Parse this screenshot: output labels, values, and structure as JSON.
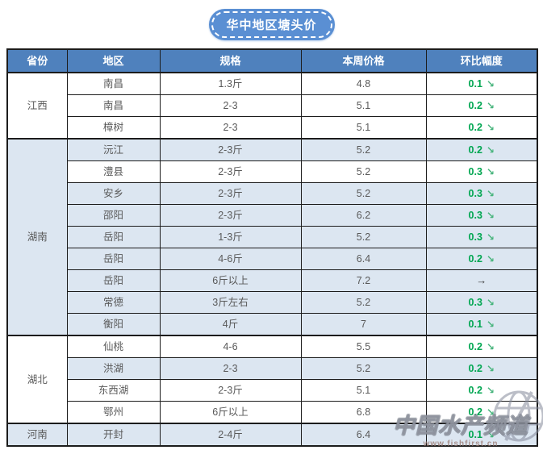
{
  "title": "华中地区塘头价",
  "table": {
    "headers": [
      "省份",
      "地区",
      "规格",
      "本周价格",
      "环比幅度"
    ],
    "provinces": [
      {
        "name": "江西",
        "shade": false,
        "rows": [
          {
            "region": "南昌",
            "spec": "1.3斤",
            "price": "4.8",
            "change": "0.1",
            "direction": "down",
            "shade": false
          },
          {
            "region": "南昌",
            "spec": "2-3",
            "price": "5.1",
            "change": "0.2",
            "direction": "down",
            "shade": false
          },
          {
            "region": "樟树",
            "spec": "2-3",
            "price": "5.1",
            "change": "0.2",
            "direction": "down",
            "shade": false
          }
        ]
      },
      {
        "name": "湖南",
        "shade": true,
        "rows": [
          {
            "region": "沅江",
            "spec": "2-3斤",
            "price": "5.2",
            "change": "0.2",
            "direction": "down",
            "shade": true
          },
          {
            "region": "澧县",
            "spec": "2-3斤",
            "price": "5.2",
            "change": "0.3",
            "direction": "down",
            "shade": false
          },
          {
            "region": "安乡",
            "spec": "2-3斤",
            "price": "5.2",
            "change": "0.3",
            "direction": "down",
            "shade": true
          },
          {
            "region": "邵阳",
            "spec": "2-3斤",
            "price": "6.2",
            "change": "0.3",
            "direction": "down",
            "shade": true
          },
          {
            "region": "岳阳",
            "spec": "1-3斤",
            "price": "5.2",
            "change": "0.3",
            "direction": "down",
            "shade": true
          },
          {
            "region": "岳阳",
            "spec": "4-6斤",
            "price": "6.4",
            "change": "0.2",
            "direction": "down",
            "shade": true
          },
          {
            "region": "岳阳",
            "spec": "6斤以上",
            "price": "7.2",
            "change": "",
            "direction": "flat",
            "shade": true
          },
          {
            "region": "常德",
            "spec": "3斤左右",
            "price": "5.2",
            "change": "0.3",
            "direction": "down",
            "shade": true
          },
          {
            "region": "衡阳",
            "spec": "4斤",
            "price": "7",
            "change": "0.1",
            "direction": "down",
            "shade": true
          }
        ]
      },
      {
        "name": "湖北",
        "shade": false,
        "rows": [
          {
            "region": "仙桃",
            "spec": "4-6",
            "price": "5.5",
            "change": "0.2",
            "direction": "down",
            "shade": false
          },
          {
            "region": "洪湖",
            "spec": "2-3",
            "price": "5.2",
            "change": "0.2",
            "direction": "down",
            "shade": true
          },
          {
            "region": "东西湖",
            "spec": "2-3斤",
            "price": "5.1",
            "change": "0.2",
            "direction": "down",
            "shade": false
          },
          {
            "region": "鄂州",
            "spec": "6斤以上",
            "price": "6.8",
            "change": "0.2",
            "direction": "down",
            "shade": false
          }
        ]
      },
      {
        "name": "河南",
        "shade": true,
        "rows": [
          {
            "region": "开封",
            "spec": "2-4斤",
            "price": "6.4",
            "change": "0.1",
            "direction": "down",
            "shade": true
          }
        ]
      }
    ]
  },
  "icons": {
    "down": "↘",
    "flat": "→"
  },
  "watermark": {
    "text": "中国水产频道",
    "url": "www.fishfirst.cn"
  },
  "colors": {
    "header_bg": "#4f81bd",
    "row_shade": "#dce6f1",
    "border": "#1c1c1c",
    "body_text": "#595959",
    "change_green": "#00a651",
    "badge_blue": "#5a8fd3"
  }
}
